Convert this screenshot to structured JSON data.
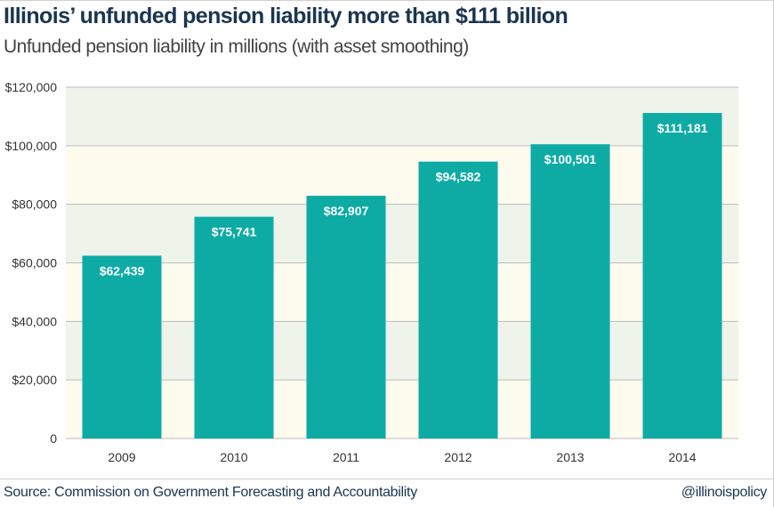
{
  "colors": {
    "bar": "#0eaba5",
    "band_green": "#eef4ea",
    "band_cream": "#fdfaee",
    "gridline": "#bdbdbd",
    "axis_text": "#333333",
    "title": "#1a3550"
  },
  "header": {
    "title": "Illinois’ unfunded pension liability more than $111 billion",
    "subtitle": "Unfunded pension liability in millions (with asset smoothing)"
  },
  "footer": {
    "source": "Source: Commission on Government Forecasting and Accountability",
    "handle": "@illinoispolicy"
  },
  "chart_data": {
    "type": "bar",
    "title": "Illinois’ unfunded pension liability more than $111 billion",
    "subtitle": "Unfunded pension liability in millions (with asset smoothing)",
    "xlabel": "",
    "ylabel": "",
    "categories": [
      "2009",
      "2010",
      "2011",
      "2012",
      "2013",
      "2014"
    ],
    "values": [
      62439,
      75741,
      82907,
      94582,
      100501,
      111181
    ],
    "data_labels": [
      "$62,439",
      "$75,741",
      "$82,907",
      "$94,582",
      "$100,501",
      "$111,181"
    ],
    "ylim": [
      0,
      120000
    ],
    "yticks": [
      0,
      20000,
      40000,
      60000,
      80000,
      100000,
      120000
    ],
    "ytick_labels": [
      "0",
      "$20,000",
      "$40,000",
      "$60,000",
      "$80,000",
      "$100,000",
      "$120,000"
    ],
    "grid": true,
    "legend": "none"
  }
}
